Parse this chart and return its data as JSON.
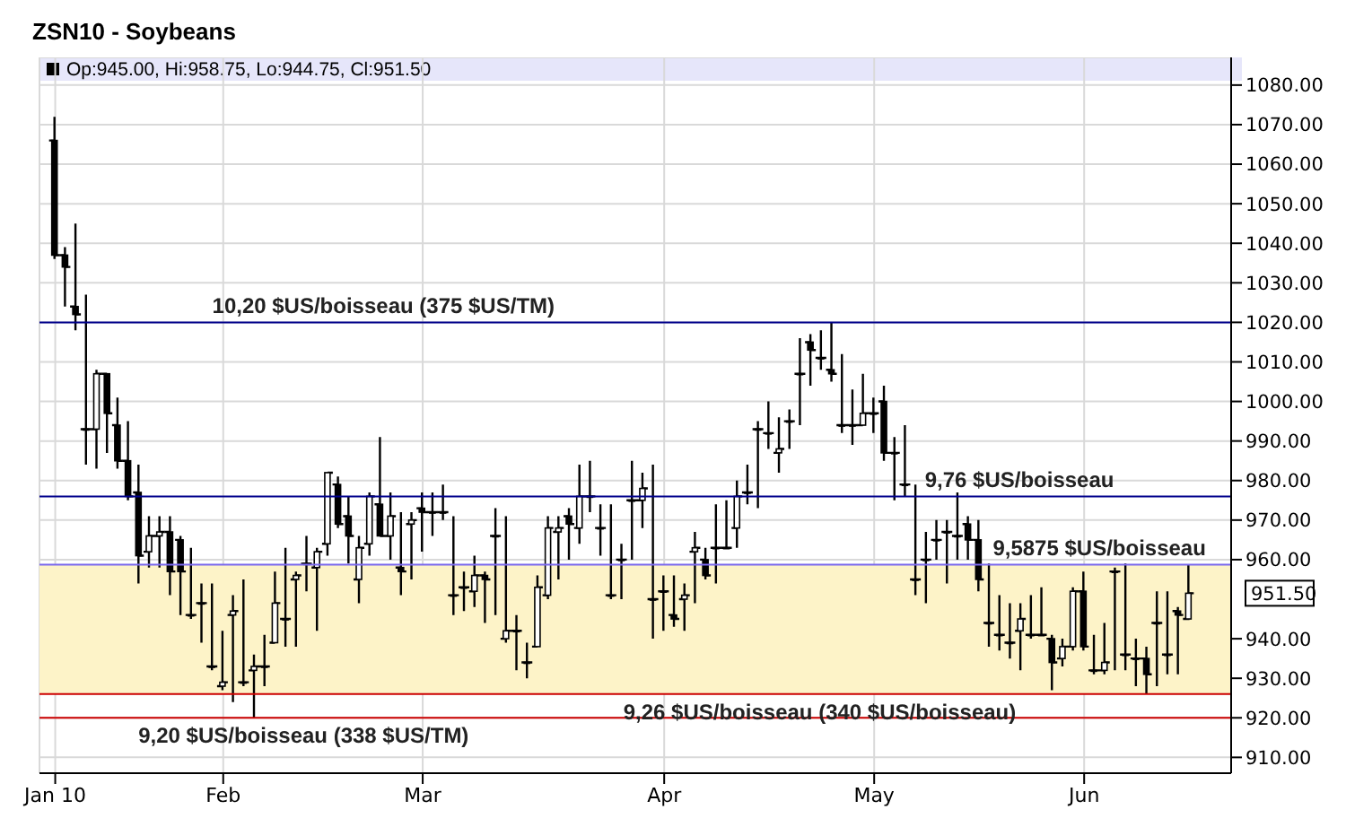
{
  "chart_data": {
    "type": "candlestick",
    "title": "ZSN10 - Soybeans",
    "categories": [
      "Jan 10",
      null,
      null,
      null,
      null,
      null,
      null,
      null,
      null,
      null,
      null,
      null,
      null,
      null,
      null,
      null,
      "Feb",
      null,
      null,
      null,
      null,
      null,
      null,
      null,
      null,
      null,
      null,
      null,
      null,
      null,
      null,
      null,
      null,
      null,
      null,
      "Mar",
      null,
      null,
      null,
      null,
      null,
      null,
      null,
      null,
      null,
      null,
      null,
      null,
      null,
      null,
      null,
      null,
      null,
      null,
      null,
      null,
      null,
      null,
      "Apr",
      null,
      null,
      null,
      null,
      null,
      null,
      null,
      null,
      null,
      null,
      null,
      null,
      null,
      null,
      null,
      null,
      null,
      null,
      null,
      "May",
      null,
      null,
      null,
      null,
      null,
      null,
      null,
      null,
      null,
      null,
      null,
      null,
      null,
      null,
      null,
      null,
      null,
      null,
      null,
      "Jun",
      null,
      null,
      null,
      null,
      null,
      null,
      null,
      null,
      null,
      null
    ],
    "ohlc": [
      [
        1066,
        1072,
        1036,
        1037
      ],
      [
        1037,
        1039,
        1024,
        1034
      ],
      [
        1024,
        1045,
        1018,
        1022
      ],
      [
        993,
        1027,
        984,
        993
      ],
      [
        993,
        1008,
        983,
        1007
      ],
      [
        1007,
        1007,
        987,
        997
      ],
      [
        994,
        1001,
        983,
        985
      ],
      [
        985,
        995,
        975,
        976
      ],
      [
        977,
        984,
        954,
        961
      ],
      [
        962,
        971,
        958,
        966
      ],
      [
        966,
        971,
        958,
        967
      ],
      [
        967,
        971,
        951,
        957
      ],
      [
        965,
        966,
        946,
        957
      ],
      [
        946,
        963,
        945,
        946
      ],
      [
        949,
        954,
        939,
        949
      ],
      [
        933,
        954,
        932,
        933
      ],
      [
        928,
        942,
        927,
        929
      ],
      [
        946,
        951,
        924,
        947
      ],
      [
        929,
        955,
        928,
        929
      ],
      [
        932,
        936,
        920,
        933
      ],
      [
        933,
        941,
        928,
        933
      ],
      [
        939,
        957,
        939,
        949
      ],
      [
        945,
        963,
        938,
        945
      ],
      [
        955,
        957,
        938,
        956
      ],
      [
        959,
        966,
        952,
        959
      ],
      [
        958,
        963,
        942,
        962
      ],
      [
        964,
        982,
        961,
        982
      ],
      [
        979,
        981,
        968,
        969
      ],
      [
        971,
        976,
        959,
        966
      ],
      [
        955,
        966,
        949,
        963
      ],
      [
        964,
        977,
        961,
        976
      ],
      [
        974,
        991,
        966,
        966
      ],
      [
        966,
        977,
        960,
        971
      ],
      [
        958,
        972,
        951,
        957
      ],
      [
        969,
        972,
        955,
        970
      ],
      [
        973,
        977,
        962,
        972
      ],
      [
        972,
        977,
        966,
        972
      ],
      [
        972,
        979,
        970,
        972
      ],
      [
        951,
        971,
        946,
        951
      ],
      [
        953,
        957,
        947,
        953
      ],
      [
        952,
        961,
        948,
        956
      ],
      [
        956,
        957,
        944,
        955
      ],
      [
        966,
        973,
        946,
        966
      ],
      [
        940,
        971,
        939,
        942
      ],
      [
        942,
        946,
        932,
        942
      ],
      [
        934,
        939,
        930,
        934
      ],
      [
        938,
        956,
        938,
        953
      ],
      [
        951,
        971,
        950,
        968
      ],
      [
        967,
        971,
        955,
        968
      ],
      [
        971,
        973,
        960,
        969
      ],
      [
        968,
        984,
        964,
        976
      ],
      [
        976,
        985,
        972,
        976
      ],
      [
        968,
        974,
        961,
        968
      ],
      [
        951,
        974,
        950,
        951
      ],
      [
        960,
        964,
        950,
        960
      ],
      [
        975,
        985,
        960,
        975
      ],
      [
        975,
        982,
        968,
        978
      ],
      [
        950,
        984,
        940,
        950
      ],
      [
        952,
        956,
        942,
        952
      ],
      [
        946,
        956,
        943,
        945
      ],
      [
        950,
        954,
        942,
        951
      ],
      [
        962,
        967,
        949,
        963
      ],
      [
        960,
        963,
        955,
        956
      ],
      [
        963,
        974,
        954,
        963
      ],
      [
        963,
        975,
        963,
        963
      ],
      [
        968,
        980,
        963,
        976
      ],
      [
        977,
        984,
        974,
        977
      ],
      [
        993,
        995,
        973,
        993
      ],
      [
        992,
        1000,
        988,
        992
      ],
      [
        987,
        996,
        982,
        988
      ],
      [
        995,
        998,
        988,
        995
      ],
      [
        1007,
        1016,
        994,
        1007
      ],
      [
        1015,
        1017,
        1004,
        1013
      ],
      [
        1011,
        1018,
        1008,
        1011
      ],
      [
        1008,
        1020,
        1005,
        1007
      ],
      [
        994,
        1012,
        992,
        994
      ],
      [
        994,
        1003,
        989,
        994
      ],
      [
        994,
        1007,
        994,
        997
      ],
      [
        997,
        1001,
        992,
        997
      ],
      [
        1000,
        1004,
        985,
        987
      ],
      [
        987,
        991,
        975,
        987
      ],
      [
        979,
        994,
        976,
        979
      ],
      [
        955,
        979,
        951,
        955
      ],
      [
        960,
        967,
        949,
        960
      ],
      [
        965,
        970,
        960,
        965
      ],
      [
        967,
        970,
        954,
        967
      ],
      [
        966,
        977,
        960,
        966
      ],
      [
        969,
        971,
        960,
        965
      ],
      [
        965,
        970,
        952,
        955
      ],
      [
        944,
        959,
        938,
        944
      ],
      [
        941,
        951,
        937,
        941
      ],
      [
        939,
        949,
        935,
        939
      ],
      [
        942,
        949,
        932,
        945
      ],
      [
        941,
        951,
        940,
        941
      ],
      [
        941,
        953,
        941,
        941
      ],
      [
        940,
        941,
        927,
        934
      ],
      [
        935,
        940,
        933,
        938
      ],
      [
        938,
        953,
        937,
        952
      ],
      [
        952,
        957,
        937,
        938
      ],
      [
        932,
        941,
        931,
        932
      ],
      [
        932,
        944,
        931,
        934
      ],
      [
        957,
        958,
        932,
        957
      ],
      [
        936,
        959,
        932,
        936
      ],
      [
        935,
        940,
        928,
        935
      ],
      [
        935,
        938,
        926,
        931
      ],
      [
        944,
        952,
        928,
        944
      ],
      [
        936,
        952,
        931,
        936
      ],
      [
        947,
        948,
        931,
        946
      ],
      [
        945,
        958.75,
        944.75,
        951.5
      ]
    ],
    "color": "#000000",
    "ylim": [
      906,
      1087
    ],
    "yticks": [
      {
        "value": 910,
        "label": "910.00"
      },
      {
        "value": 920,
        "label": "920.00"
      },
      {
        "value": 930,
        "label": "930.00"
      },
      {
        "value": 940,
        "label": "940.00"
      },
      {
        "value": 960,
        "label": "960.00"
      },
      {
        "value": 970,
        "label": "970.00"
      },
      {
        "value": 980,
        "label": "980.00"
      },
      {
        "value": 990,
        "label": "990.00"
      },
      {
        "value": 1000,
        "label": "1000.00"
      },
      {
        "value": 1010,
        "label": "1010.00"
      },
      {
        "value": 1020,
        "label": "1020.00"
      },
      {
        "value": 1030,
        "label": "1030.00"
      },
      {
        "value": 1040,
        "label": "1040.00"
      },
      {
        "value": 1050,
        "label": "1050.00"
      },
      {
        "value": 1060,
        "label": "1060.00"
      },
      {
        "value": 1070,
        "label": "1070.00"
      },
      {
        "value": 1080,
        "label": "1080.00"
      }
    ],
    "grid": true,
    "ref_lines": [
      {
        "axis": "y",
        "value": 1020,
        "label": "10,20 $US/boisseau (375 $US/TM)",
        "color": "#00008b"
      },
      {
        "axis": "y",
        "value": 920,
        "label": "9,20 $US/boisseau (338 $US/TM)",
        "color": "#cc0000"
      },
      {
        "axis": "y",
        "value": 976,
        "label": "9,76 $US/boisseau",
        "color": "#00008b"
      },
      {
        "axis": "y",
        "value": 958.75,
        "label": "9,5875 $US/boisseau",
        "color": "#7b68ee"
      },
      {
        "axis": "y",
        "value": 926,
        "label": "9,26 $US/boisseau (340 $US/boisseau)",
        "color": "#cc0000"
      }
    ],
    "bands": [
      {
        "axis": "y",
        "from": 926,
        "to": 958.75,
        "color": "#fdf3c8"
      }
    ],
    "annotations": [
      "Op:945.00, Hi:958.75, Lo:944.75, Cl:951.50",
      "951.50"
    ]
  }
}
